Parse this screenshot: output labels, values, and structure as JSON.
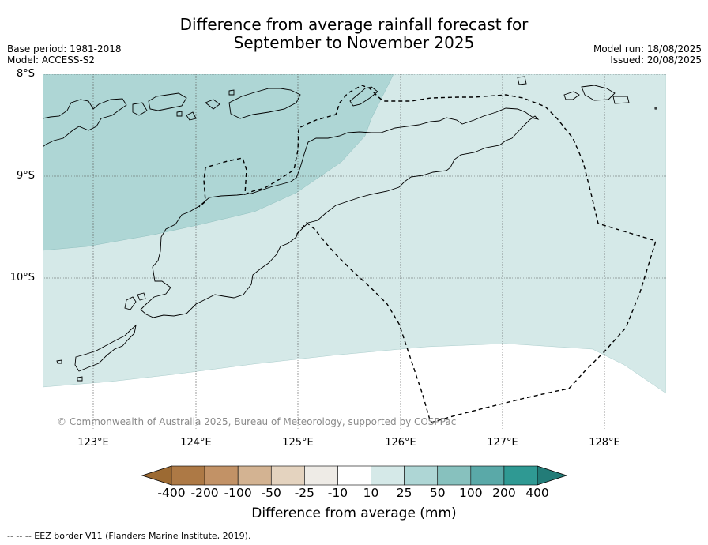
{
  "title": {
    "line1": "Difference from average rainfall forecast for",
    "line2": "September to November 2025"
  },
  "meta": {
    "base_period": "Base period: 1981-2018",
    "model": "Model: ACCESS-S2",
    "model_run": "Model run: 18/08/2025",
    "issued": "Issued: 20/08/2025"
  },
  "map": {
    "lat_labels": [
      "8°S",
      "9°S",
      "10°S"
    ],
    "lon_labels": [
      "123°E",
      "124°E",
      "125°E",
      "126°E",
      "127°E",
      "128°E"
    ],
    "copyright": "© Commonwealth of Australia 2025, Bureau of Meteorology, supported by COSPPac"
  },
  "colorbar": {
    "title": "Difference from average (mm)",
    "tick_labels": [
      "-400",
      "-200",
      "-100",
      "-50",
      "-25",
      "-10",
      "10",
      "25",
      "50",
      "100",
      "200",
      "400"
    ],
    "colors": [
      "#9c6a33",
      "#ad7945",
      "#c29266",
      "#d3b392",
      "#e4d3bf",
      "#eeebe6",
      "#ffffff",
      "#d5e9e8",
      "#aed6d5",
      "#87c1be",
      "#5aa9a8",
      "#2f9993",
      "#237c78"
    ]
  },
  "footer": "--  --  -- EEZ border V11 (Flanders Marine Institute, 2019).",
  "legend_categories": {
    "zone_high": "25 to 50",
    "zone_mid": "10 to 25",
    "zone_low": "-10 to 10"
  }
}
